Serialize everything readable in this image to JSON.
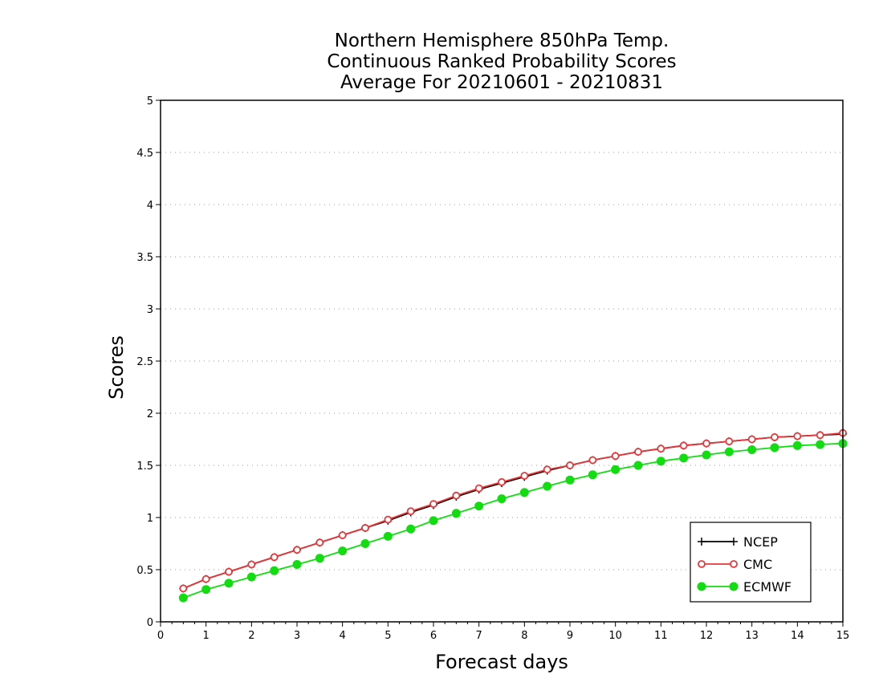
{
  "chart_data": {
    "type": "line",
    "title": [
      "Northern Hemisphere 850hPa Temp.",
      "Continuous Ranked Probability Scores",
      "Average For 20210601 - 20210831"
    ],
    "xlabel": "Forecast days",
    "ylabel": "Scores",
    "xlim": [
      0,
      15
    ],
    "ylim": [
      0,
      5
    ],
    "xticks": [
      "0",
      "1",
      "2",
      "3",
      "4",
      "5",
      "6",
      "7",
      "8",
      "9",
      "10",
      "11",
      "12",
      "13",
      "14",
      "15"
    ],
    "yticks": [
      "0",
      "0.5",
      "1",
      "1.5",
      "2",
      "2.5",
      "3",
      "3.5",
      "4",
      "4.5",
      "5"
    ],
    "grid": "horizontal dotted",
    "legend_position": "bottom-right",
    "x": [
      0.5,
      1,
      1.5,
      2,
      2.5,
      3,
      3.5,
      4,
      4.5,
      5,
      5.5,
      6,
      6.5,
      7,
      7.5,
      8,
      8.5,
      9,
      9.5,
      10,
      10.5,
      11,
      11.5,
      12,
      12.5,
      13,
      13.5,
      14,
      14.5,
      15
    ],
    "series": [
      {
        "name": "NCEP",
        "color": "#000000",
        "marker": "plus",
        "values": [
          0.32,
          0.41,
          0.48,
          0.55,
          0.62,
          0.69,
          0.76,
          0.83,
          0.9,
          0.97,
          1.05,
          1.12,
          1.2,
          1.27,
          1.33,
          1.39,
          1.45,
          1.5,
          1.55,
          1.59,
          1.63,
          1.66,
          1.69,
          1.71,
          1.73,
          1.75,
          1.77,
          1.78,
          1.79,
          1.8
        ]
      },
      {
        "name": "CMC",
        "color": "#e8383b",
        "marker": "open-circle",
        "values": [
          0.32,
          0.41,
          0.48,
          0.55,
          0.62,
          0.69,
          0.76,
          0.83,
          0.9,
          0.98,
          1.06,
          1.13,
          1.21,
          1.28,
          1.34,
          1.4,
          1.46,
          1.5,
          1.55,
          1.59,
          1.63,
          1.66,
          1.69,
          1.71,
          1.73,
          1.75,
          1.77,
          1.78,
          1.79,
          1.81
        ]
      },
      {
        "name": "ECMWF",
        "color": "#11dd11",
        "marker": "filled-circle",
        "values": [
          0.23,
          0.31,
          0.37,
          0.43,
          0.49,
          0.55,
          0.61,
          0.68,
          0.75,
          0.82,
          0.89,
          0.97,
          1.04,
          1.11,
          1.18,
          1.24,
          1.3,
          1.36,
          1.41,
          1.46,
          1.5,
          1.54,
          1.57,
          1.6,
          1.63,
          1.65,
          1.67,
          1.69,
          1.7,
          1.71
        ]
      }
    ]
  }
}
